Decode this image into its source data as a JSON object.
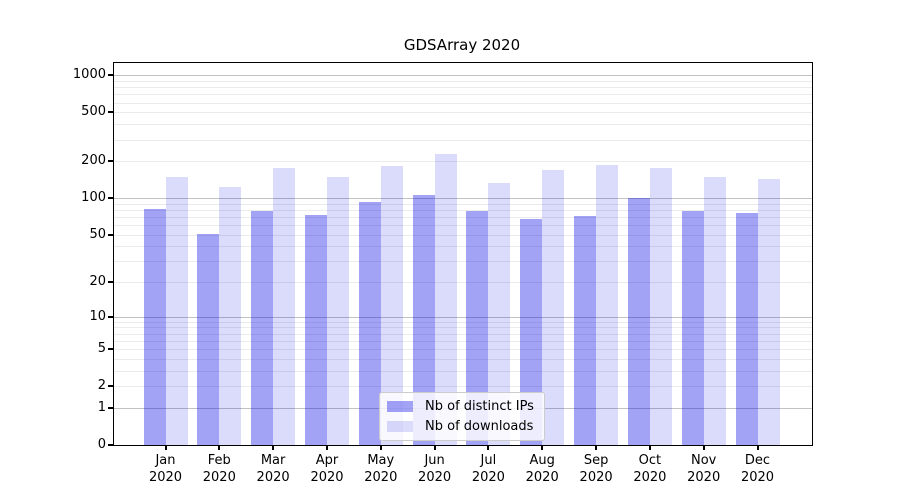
{
  "title": "GDSArray 2020",
  "chart_data": {
    "type": "bar",
    "title": "GDSArray 2020",
    "categories": [
      "Jan",
      "Feb",
      "Mar",
      "Apr",
      "May",
      "Jun",
      "Jul",
      "Aug",
      "Sep",
      "Oct",
      "Nov",
      "Dec"
    ],
    "category_year": "2020",
    "series": [
      {
        "name": "Nb of distinct IPs",
        "color": "rgba(0,0,230,0.36)",
        "values": [
          82,
          51,
          79,
          73,
          93,
          107,
          78,
          67,
          72,
          100,
          79,
          76
        ]
      },
      {
        "name": "Nb of downloads",
        "color": "rgba(0,0,230,0.14)",
        "values": [
          149,
          123,
          176,
          149,
          183,
          230,
          134,
          170,
          185,
          176,
          149,
          143
        ]
      }
    ],
    "xlabel": "",
    "ylabel": "",
    "y_scale": "log1p",
    "y_ticks": [
      0,
      1,
      2,
      5,
      10,
      20,
      50,
      100,
      200,
      500,
      1000
    ],
    "y_gridlines_major": [
      1,
      10,
      100,
      1000
    ],
    "y_gridlines_minor": [
      2,
      3,
      4,
      5,
      6,
      7,
      8,
      9,
      20,
      30,
      40,
      50,
      60,
      70,
      80,
      90,
      200,
      300,
      400,
      500,
      600,
      700,
      800,
      900
    ],
    "ylim": [
      0,
      1250
    ],
    "grid": true,
    "legend_position": "lower center"
  }
}
